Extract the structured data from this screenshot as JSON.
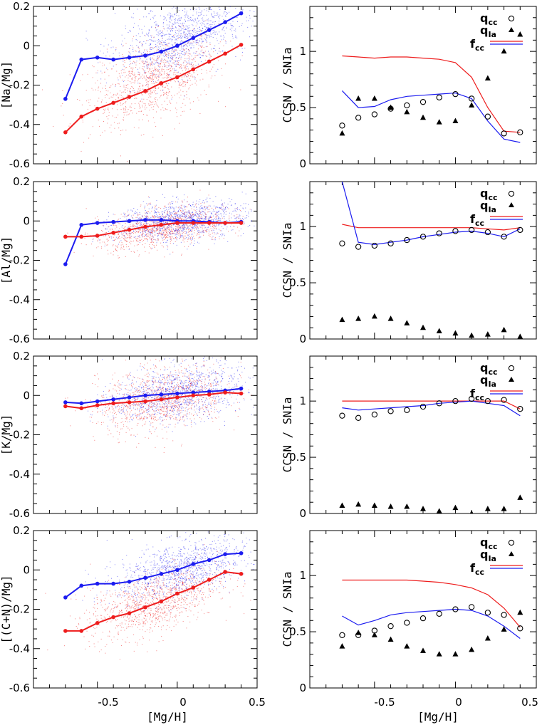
{
  "colors": {
    "blue": "#1c1cf0",
    "red": "#ee1c1c",
    "axes": "#000000"
  },
  "x_axis": {
    "label": "[Mg/H]",
    "ticks": [
      "-0.5",
      "0",
      "0.5"
    ],
    "range": [
      -0.9,
      0.5
    ]
  },
  "legend": {
    "q_cc": "q",
    "q_cc_sub": "cc",
    "q_ia": "q",
    "q_ia_sub": "Ia",
    "f_cc": "f",
    "f_cc_sub": "cc"
  },
  "chart_data": [
    {
      "type": "scatter",
      "panel": "left",
      "ylabel": "[Na/Mg]",
      "ylim": [
        -0.6,
        0.2
      ],
      "yticks": [
        "-0.6",
        "-0.4",
        "-0.2",
        "0",
        "0.2"
      ],
      "series": [
        {
          "color": "blue",
          "scatter_center": [
            0.03,
            0.08
          ],
          "scatter_width": 0.09,
          "x": [
            -0.7,
            -0.6,
            -0.5,
            -0.4,
            -0.3,
            -0.2,
            -0.1,
            0.0,
            0.1,
            0.2,
            0.3,
            0.4
          ],
          "y": [
            -0.27,
            -0.07,
            -0.06,
            -0.07,
            -0.06,
            -0.05,
            -0.03,
            0.0,
            0.04,
            0.08,
            0.12,
            0.165
          ]
        },
        {
          "color": "red",
          "scatter_center": [
            -0.15,
            -0.13
          ],
          "scatter_width": 0.1,
          "x": [
            -0.7,
            -0.6,
            -0.5,
            -0.4,
            -0.3,
            -0.2,
            -0.1,
            0.0,
            0.1,
            0.2,
            0.3,
            0.4
          ],
          "y": [
            -0.44,
            -0.36,
            -0.32,
            -0.29,
            -0.26,
            -0.23,
            -0.19,
            -0.16,
            -0.12,
            -0.08,
            -0.04,
            0.005
          ]
        }
      ]
    },
    {
      "type": "line",
      "panel": "right",
      "ylabel": "CCSN / SNIa",
      "ylim": [
        0,
        1.4
      ],
      "yticks": [
        "0",
        "0.5",
        "1"
      ],
      "x": [
        -0.7,
        -0.6,
        -0.5,
        -0.4,
        -0.3,
        -0.2,
        -0.1,
        0.0,
        0.1,
        0.2,
        0.3,
        0.4
      ],
      "q_cc": [
        0.34,
        0.41,
        0.44,
        0.49,
        0.52,
        0.55,
        0.59,
        0.62,
        0.58,
        0.42,
        0.27,
        0.28
      ],
      "q_ia": [
        0.27,
        0.58,
        0.58,
        0.5,
        0.46,
        0.41,
        0.37,
        0.38,
        0.52,
        0.76,
        1.0,
        1.15
      ],
      "f_cc_red": [
        0.96,
        0.95,
        0.94,
        0.95,
        0.95,
        0.94,
        0.93,
        0.9,
        0.77,
        0.5,
        0.29,
        0.28
      ],
      "f_cc_blue": [
        0.65,
        0.5,
        0.51,
        0.57,
        0.6,
        0.61,
        0.62,
        0.63,
        0.58,
        0.38,
        0.22,
        0.19
      ]
    },
    {
      "type": "scatter",
      "panel": "left",
      "ylabel": "[Al/Mg]",
      "ylim": [
        -0.6,
        0.2
      ],
      "yticks": [
        "-0.6",
        "-0.4",
        "-0.2",
        "0",
        "0.2"
      ],
      "series": [
        {
          "color": "blue",
          "scatter_center": [
            0.02,
            0.005
          ],
          "scatter_width": 0.05,
          "x": [
            -0.7,
            -0.6,
            -0.5,
            -0.4,
            -0.3,
            -0.2,
            -0.1,
            0.0,
            0.1,
            0.2,
            0.3,
            0.4
          ],
          "y": [
            -0.22,
            -0.02,
            -0.01,
            -0.005,
            0.0,
            0.005,
            0.005,
            0.0,
            0.0,
            -0.005,
            -0.01,
            -0.005
          ]
        },
        {
          "color": "red",
          "scatter_center": [
            -0.1,
            -0.04
          ],
          "scatter_width": 0.05,
          "x": [
            -0.7,
            -0.6,
            -0.5,
            -0.4,
            -0.3,
            -0.2,
            -0.1,
            0.0,
            0.1,
            0.2,
            0.3,
            0.4
          ],
          "y": [
            -0.08,
            -0.08,
            -0.075,
            -0.06,
            -0.045,
            -0.03,
            -0.02,
            -0.01,
            -0.01,
            -0.01,
            -0.01,
            -0.01
          ]
        }
      ]
    },
    {
      "type": "line",
      "panel": "right",
      "ylabel": "CCSN / SNIa",
      "ylim": [
        0,
        1.4
      ],
      "yticks": [
        "0",
        "0.5",
        "1"
      ],
      "x": [
        -0.7,
        -0.6,
        -0.5,
        -0.4,
        -0.3,
        -0.2,
        -0.1,
        0.0,
        0.1,
        0.2,
        0.3,
        0.4
      ],
      "q_cc": [
        0.85,
        0.82,
        0.83,
        0.85,
        0.88,
        0.91,
        0.94,
        0.96,
        0.97,
        0.95,
        0.91,
        0.97
      ],
      "q_ia": [
        0.17,
        0.18,
        0.2,
        0.18,
        0.14,
        0.1,
        0.07,
        0.05,
        0.03,
        0.04,
        0.08,
        0.02
      ],
      "f_cc_red": [
        1.02,
        0.99,
        0.99,
        0.99,
        0.99,
        0.99,
        0.99,
        0.99,
        0.99,
        0.98,
        0.97,
        0.99
      ],
      "f_cc_blue": [
        1.4,
        0.86,
        0.84,
        0.86,
        0.88,
        0.91,
        0.93,
        0.95,
        0.96,
        0.94,
        0.91,
        0.98
      ]
    },
    {
      "type": "scatter",
      "panel": "left",
      "ylabel": "[K/Mg]",
      "ylim": [
        -0.6,
        0.2
      ],
      "yticks": [
        "-0.6",
        "-0.4",
        "-0.2",
        "0",
        "0.2"
      ],
      "series": [
        {
          "color": "blue",
          "scatter_center": [
            0.0,
            0.02
          ],
          "scatter_width": 0.07,
          "x": [
            -0.7,
            -0.6,
            -0.5,
            -0.4,
            -0.3,
            -0.2,
            -0.1,
            0.0,
            0.1,
            0.2,
            0.3,
            0.4
          ],
          "y": [
            -0.035,
            -0.04,
            -0.03,
            -0.02,
            -0.01,
            0.0,
            0.005,
            0.01,
            0.015,
            0.02,
            0.025,
            0.035
          ]
        },
        {
          "color": "red",
          "scatter_center": [
            -0.1,
            -0.02
          ],
          "scatter_width": 0.08,
          "x": [
            -0.7,
            -0.6,
            -0.5,
            -0.4,
            -0.3,
            -0.2,
            -0.1,
            0.0,
            0.1,
            0.2,
            0.3,
            0.4
          ],
          "y": [
            -0.055,
            -0.065,
            -0.05,
            -0.04,
            -0.035,
            -0.03,
            -0.02,
            -0.01,
            0.0,
            0.005,
            0.015,
            0.01
          ]
        }
      ]
    },
    {
      "type": "line",
      "panel": "right",
      "ylabel": "CCSN / SNIa",
      "ylim": [
        0,
        1.4
      ],
      "yticks": [
        "0",
        "0.5",
        "1"
      ],
      "x": [
        -0.7,
        -0.6,
        -0.5,
        -0.4,
        -0.3,
        -0.2,
        -0.1,
        0.0,
        0.1,
        0.2,
        0.3,
        0.4
      ],
      "q_cc": [
        0.87,
        0.85,
        0.88,
        0.91,
        0.92,
        0.95,
        0.98,
        1.0,
        1.02,
        1.0,
        1.01,
        0.93
      ],
      "q_ia": [
        0.07,
        0.08,
        0.07,
        0.06,
        0.06,
        0.04,
        0.02,
        0.05,
        0.0,
        0.04,
        0.04,
        0.14
      ],
      "f_cc_red": [
        1.0,
        1.0,
        1.0,
        1.0,
        1.0,
        1.0,
        1.0,
        1.0,
        1.0,
        1.0,
        1.0,
        0.93
      ],
      "f_cc_blue": [
        0.94,
        0.92,
        0.93,
        0.94,
        0.95,
        0.96,
        0.98,
        0.99,
        1.0,
        0.98,
        0.96,
        0.87
      ]
    },
    {
      "type": "scatter",
      "panel": "left",
      "ylabel": "[(C+N)/Mg]",
      "ylim": [
        -0.6,
        0.2
      ],
      "yticks": [
        "-0.6",
        "-0.4",
        "-0.2",
        "0",
        "0.2"
      ],
      "series": [
        {
          "color": "blue",
          "scatter_center": [
            0.03,
            0.0
          ],
          "scatter_width": 0.07,
          "x": [
            -0.7,
            -0.6,
            -0.5,
            -0.4,
            -0.3,
            -0.2,
            -0.1,
            0.0,
            0.1,
            0.2,
            0.3,
            0.4
          ],
          "y": [
            -0.14,
            -0.08,
            -0.07,
            -0.07,
            -0.06,
            -0.04,
            -0.02,
            0.0,
            0.03,
            0.05,
            0.08,
            0.085
          ]
        },
        {
          "color": "red",
          "scatter_center": [
            -0.15,
            -0.16
          ],
          "scatter_width": 0.08,
          "x": [
            -0.7,
            -0.6,
            -0.5,
            -0.4,
            -0.3,
            -0.2,
            -0.1,
            0.0,
            0.1,
            0.2,
            0.3,
            0.4
          ],
          "y": [
            -0.31,
            -0.31,
            -0.27,
            -0.24,
            -0.22,
            -0.19,
            -0.16,
            -0.12,
            -0.09,
            -0.05,
            -0.01,
            -0.02
          ]
        }
      ]
    },
    {
      "type": "line",
      "panel": "right",
      "ylabel": "CCSN / SNIa",
      "ylim": [
        0,
        1.4
      ],
      "yticks": [
        "0",
        "0.5",
        "1"
      ],
      "x": [
        -0.7,
        -0.6,
        -0.5,
        -0.4,
        -0.3,
        -0.2,
        -0.1,
        0.0,
        0.1,
        0.2,
        0.3,
        0.4
      ],
      "q_cc": [
        0.47,
        0.47,
        0.51,
        0.55,
        0.58,
        0.62,
        0.66,
        0.7,
        0.72,
        0.67,
        0.65,
        0.53
      ],
      "q_ia": [
        0.37,
        0.49,
        0.47,
        0.43,
        0.37,
        0.33,
        0.3,
        0.3,
        0.34,
        0.44,
        0.52,
        0.67
      ],
      "f_cc_red": [
        0.96,
        0.96,
        0.96,
        0.96,
        0.96,
        0.95,
        0.94,
        0.92,
        0.89,
        0.83,
        0.71,
        0.54
      ],
      "f_cc_blue": [
        0.64,
        0.56,
        0.6,
        0.65,
        0.67,
        0.68,
        0.69,
        0.7,
        0.69,
        0.64,
        0.55,
        0.44
      ]
    }
  ]
}
